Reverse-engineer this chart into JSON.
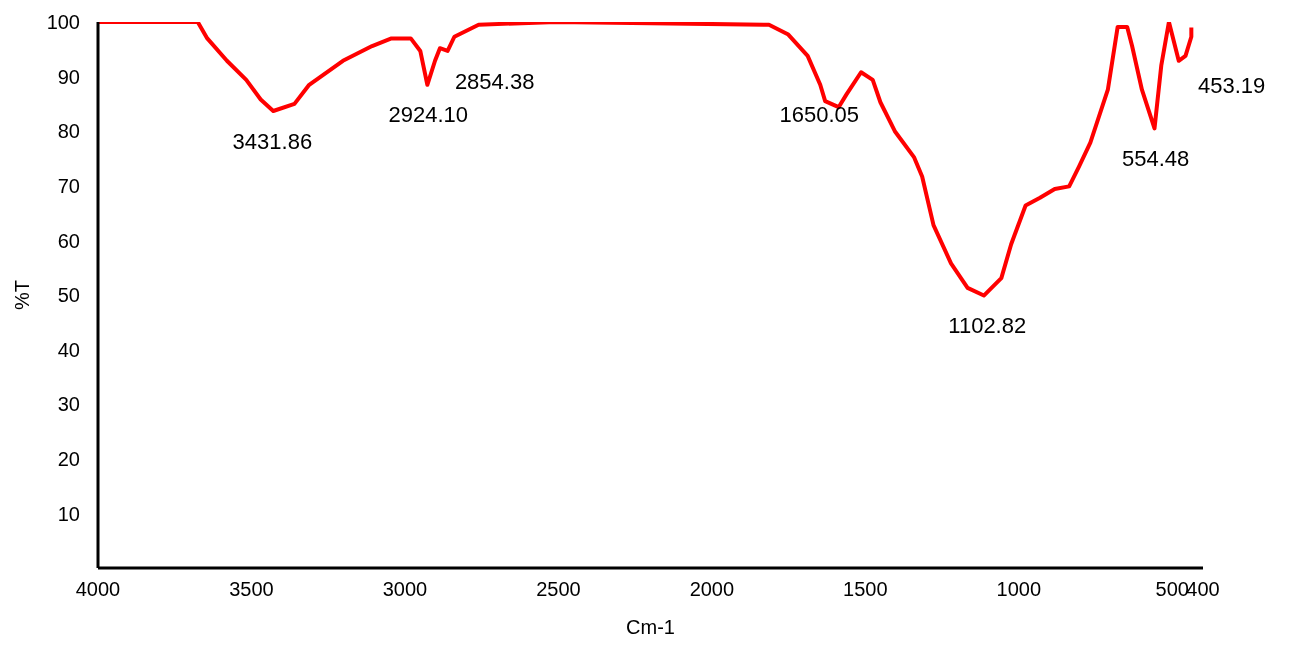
{
  "chart_data": {
    "type": "line",
    "xlabel": "Cm-1",
    "ylabel": "%T",
    "x": [
      4000,
      3675,
      3644,
      3580,
      3517,
      3470,
      3429,
      3360,
      3312,
      3202,
      3107,
      3044,
      2981,
      2950,
      2927,
      2902,
      2886,
      2861,
      2839,
      2760,
      2508,
      1814,
      1751,
      1688,
      1647,
      1631,
      1587,
      1562,
      1514,
      1476,
      1451,
      1404,
      1341,
      1315,
      1278,
      1221,
      1167,
      1114,
      1057,
      1025,
      978,
      931,
      883,
      836,
      804,
      767,
      710,
      678,
      647,
      631,
      599,
      558,
      536,
      511,
      479,
      457,
      438,
      438
    ],
    "series": [
      {
        "color": "#ff0000",
        "values": [
          100,
          100,
          97,
          92.9,
          89.4,
          85.8,
          83.7,
          85,
          88.5,
          92.9,
          95.6,
          97,
          97,
          94.7,
          88.5,
          92.9,
          95.2,
          94.7,
          97.3,
          99.5,
          100,
          99.5,
          97.7,
          93.8,
          88.5,
          85.5,
          84.4,
          86.7,
          90.8,
          89.4,
          85.3,
          80,
          75.2,
          71.7,
          62.8,
          55.8,
          51.3,
          49.9,
          53.1,
          59.3,
          66.4,
          67.8,
          69.4,
          69.9,
          73.5,
          77.9,
          87.6,
          99.1,
          99.1,
          95.6,
          87.6,
          80.5,
          92,
          100,
          92.9,
          93.8,
          97.3,
          99
        ]
      }
    ],
    "xlim": [
      4000,
      400
    ],
    "xticks": [
      4000,
      3500,
      3000,
      2500,
      2000,
      1500,
      1000,
      500,
      400
    ],
    "ylim": [
      0,
      100
    ],
    "yticks": [
      10,
      20,
      30,
      40,
      50,
      60,
      70,
      80,
      90,
      100
    ],
    "grid": false,
    "legend": false,
    "marker": "none",
    "line_style": "solid",
    "annotations": [
      {
        "text": "3431.86",
        "x": 3431.86,
        "y": 83.7
      },
      {
        "text": "2924.10",
        "x": 2924.1,
        "y": 88.5
      },
      {
        "text": "2854.38",
        "x": 2854.38,
        "y": 94.7
      },
      {
        "text": "1650.05",
        "x": 1650.05,
        "y": 88.5
      },
      {
        "text": "1102.82",
        "x": 1102.82,
        "y": 49.9
      },
      {
        "text": "554.48",
        "x": 554.48,
        "y": 80.5
      },
      {
        "text": "453.19",
        "x": 453.19,
        "y": 93.8
      }
    ]
  }
}
